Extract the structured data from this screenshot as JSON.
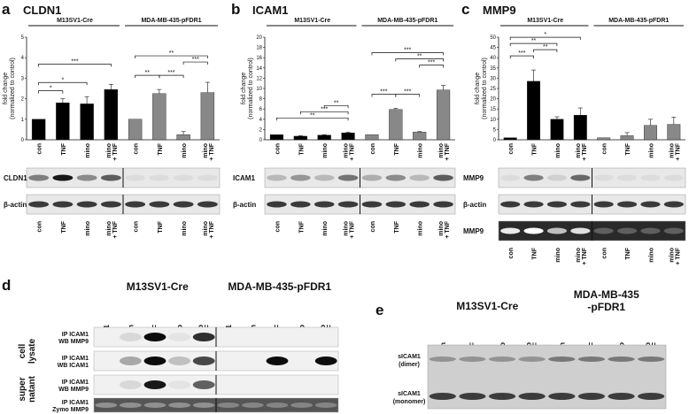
{
  "panels": {
    "a": {
      "letter": "a",
      "title": "CLDN1",
      "group1": "M13SV1-Cre",
      "group2": "MDA-MB-435-pFDR1"
    },
    "b": {
      "letter": "b",
      "title": "ICAM1",
      "group1": "M13SV1-Cre",
      "group2": "MDA-MB-435-pFDR1"
    },
    "c": {
      "letter": "c",
      "title": "MMP9",
      "group1": "M13SV1-Cre",
      "group2": "MDA-MB-435-pFDR1"
    },
    "d": {
      "letter": "d",
      "group1": "M13SV1-Cre",
      "group2": "MDA-MB-435-pFDR1",
      "lanes": [
        "IgG1",
        "con",
        "TNF",
        "mino",
        "mino + TNF",
        "IgG1",
        "con",
        "TNF",
        "mino",
        "mino + TNF"
      ],
      "row_labels": [
        "IP ICAM1\nWB MMP9",
        "IP ICAM1\nWB ICAM1",
        "IP ICAM1\nWB MMP9",
        "IP ICAM1\nZymo MMP9"
      ],
      "group_labels": [
        "cell lysate",
        "super natant"
      ]
    },
    "e": {
      "letter": "e",
      "group1": "M13SV1-Cre",
      "group2": "MDA-MB-435 -pFDR1",
      "lanes": [
        "con",
        "TNF",
        "mino",
        "mino + TNF",
        "con",
        "TNF",
        "mino",
        "mino + TNF"
      ],
      "bands": [
        "sICAM1 (dimer)",
        "sICAM1 (monomer)"
      ]
    }
  },
  "blot_labels": {
    "a": [
      "CLDN1",
      "β-actin"
    ],
    "b": [
      "ICAM1",
      "β-actin"
    ],
    "c": [
      "MMP9",
      "β-actin",
      "MMP9"
    ]
  },
  "sig": {
    "s1": "*",
    "s2": "**",
    "s3": "***"
  },
  "chart_data": [
    {
      "type": "bar",
      "title": "CLDN1",
      "ylabel": "fold change (normalized to control)",
      "ylim": [
        0,
        5
      ],
      "yticks": [
        0,
        1,
        2,
        3,
        4,
        5
      ],
      "categories": [
        "con",
        "TNF",
        "mino",
        "mino + TNF",
        "con",
        "TNF",
        "mino",
        "mino + TNF"
      ],
      "series": [
        {
          "values": [
            1.0,
            1.8,
            1.75,
            2.45,
            1.0,
            2.25,
            0.25,
            2.3
          ],
          "errors": [
            0.0,
            0.2,
            0.35,
            0.25,
            0.0,
            0.2,
            0.15,
            0.5
          ]
        }
      ],
      "colors": [
        "#000000",
        "#000000",
        "#000000",
        "#000000",
        "#888888",
        "#888888",
        "#888888",
        "#888888"
      ]
    },
    {
      "type": "bar",
      "title": "ICAM1",
      "ylabel": "fold change (normalized to control)",
      "ylim": [
        0,
        20
      ],
      "yticks": [
        0,
        2,
        4,
        6,
        8,
        10,
        12,
        14,
        16,
        18,
        20
      ],
      "categories": [
        "con",
        "TNF",
        "mino",
        "mino + TNF",
        "con",
        "TNF",
        "mino",
        "mino + TNF"
      ],
      "series": [
        {
          "values": [
            1.0,
            0.7,
            0.9,
            1.35,
            1.0,
            5.9,
            1.5,
            9.7
          ],
          "errors": [
            0.0,
            0.1,
            0.1,
            0.15,
            0.0,
            0.2,
            0.1,
            0.9
          ]
        }
      ],
      "colors": [
        "#000000",
        "#000000",
        "#000000",
        "#000000",
        "#888888",
        "#888888",
        "#888888",
        "#888888"
      ]
    },
    {
      "type": "bar",
      "title": "MMP9",
      "ylabel": "fold change (normalized to control)",
      "ylim": [
        0,
        50
      ],
      "yticks": [
        0,
        5,
        10,
        15,
        20,
        25,
        30,
        35,
        40,
        45,
        50
      ],
      "categories": [
        "con",
        "TNF",
        "mino",
        "mino + TNF",
        "con",
        "TNF",
        "mino",
        "mino + TNF"
      ],
      "series": [
        {
          "values": [
            1.0,
            28.5,
            10.0,
            12.0,
            1.0,
            2.0,
            7.0,
            7.5
          ],
          "errors": [
            0.0,
            5.5,
            1.2,
            3.5,
            0.0,
            1.5,
            3.0,
            3.5
          ]
        }
      ],
      "colors": [
        "#000000",
        "#000000",
        "#000000",
        "#000000",
        "#888888",
        "#888888",
        "#888888",
        "#888888"
      ]
    }
  ]
}
